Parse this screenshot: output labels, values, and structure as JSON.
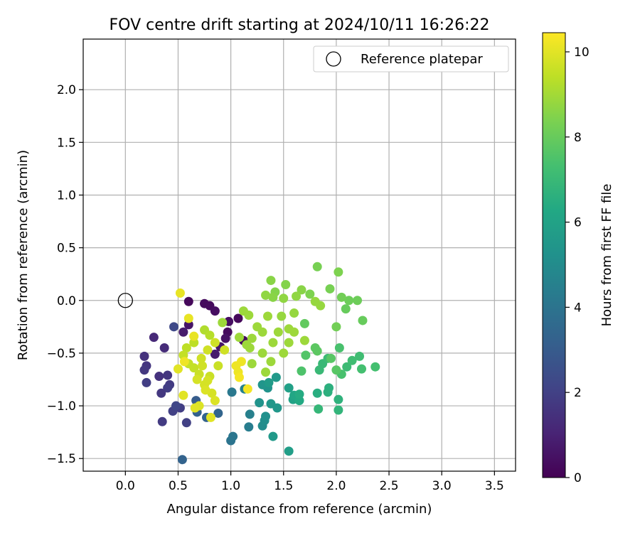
{
  "chart_data": {
    "type": "scatter",
    "title": "FOV centre drift starting at 2024/10/11 16:26:22",
    "xlabel": "Angular distance from reference (arcmin)",
    "ylabel": "Rotation from reference (arcmin)",
    "xlim": [
      -0.4,
      3.7
    ],
    "ylim": [
      -1.62,
      2.48
    ],
    "xticks": [
      0.0,
      0.5,
      1.0,
      1.5,
      2.0,
      2.5,
      3.0,
      3.5
    ],
    "xtick_labels": [
      "0.0",
      "0.5",
      "1.0",
      "1.5",
      "2.0",
      "2.5",
      "3.0",
      "3.5"
    ],
    "yticks": [
      -1.5,
      -1.0,
      -0.5,
      0.0,
      0.5,
      1.0,
      1.5,
      2.0
    ],
    "ytick_labels": [
      "−1.5",
      "−1.0",
      "−0.5",
      "0.0",
      "0.5",
      "1.0",
      "1.5",
      "2.0"
    ],
    "grid": true,
    "legend": {
      "position": "top-right",
      "entries": [
        "Reference platepar"
      ]
    },
    "reference_point": {
      "name": "Reference platepar",
      "x": 0.0,
      "y": 0.0
    },
    "colorbar": {
      "label": "Hours from first FF file",
      "colormap": "viridis",
      "range": [
        0,
        10.45
      ],
      "ticks": [
        0,
        2,
        4,
        6,
        8,
        10
      ],
      "tick_labels": [
        "0",
        "2",
        "4",
        "6",
        "8",
        "10"
      ]
    },
    "points": [
      [
        0.6,
        -0.01,
        0.2
      ],
      [
        0.75,
        -0.03,
        0.3
      ],
      [
        0.8,
        -0.05,
        0.3
      ],
      [
        0.85,
        -0.1,
        0.4
      ],
      [
        0.98,
        -0.2,
        0.4
      ],
      [
        0.97,
        -0.3,
        0.3
      ],
      [
        1.07,
        -0.17,
        0.2
      ],
      [
        1.12,
        -0.38,
        0.3
      ],
      [
        0.95,
        -0.36,
        0.5
      ],
      [
        0.9,
        -0.44,
        0.6
      ],
      [
        0.85,
        -0.51,
        0.8
      ],
      [
        0.6,
        -0.23,
        0.6
      ],
      [
        0.55,
        -0.3,
        0.8
      ],
      [
        0.27,
        -0.35,
        1.2
      ],
      [
        0.37,
        -0.45,
        1.3
      ],
      [
        0.18,
        -0.53,
        1.5
      ],
      [
        0.2,
        -0.62,
        1.6
      ],
      [
        0.18,
        -0.66,
        1.7
      ],
      [
        0.32,
        -0.72,
        1.5
      ],
      [
        0.4,
        -0.71,
        1.6
      ],
      [
        0.42,
        -0.8,
        1.8
      ],
      [
        0.4,
        -0.83,
        1.9
      ],
      [
        0.34,
        -0.88,
        1.7
      ],
      [
        0.2,
        -0.78,
        1.9
      ],
      [
        0.35,
        -1.15,
        1.8
      ],
      [
        0.45,
        -1.05,
        2.0
      ],
      [
        0.52,
        -1.02,
        1.9
      ],
      [
        0.58,
        -1.16,
        2.0
      ],
      [
        0.48,
        -1.0,
        2.2
      ],
      [
        0.46,
        -0.25,
        2.3
      ],
      [
        0.67,
        -0.95,
        3.0
      ],
      [
        0.68,
        -1.06,
        3.2
      ],
      [
        0.77,
        -1.11,
        3.3
      ],
      [
        0.88,
        -1.07,
        3.4
      ],
      [
        0.54,
        -1.51,
        3.3
      ],
      [
        1.0,
        -1.33,
        4.0
      ],
      [
        1.02,
        -1.29,
        4.1
      ],
      [
        1.01,
        -0.87,
        4.2
      ],
      [
        1.17,
        -1.2,
        4.4
      ],
      [
        1.18,
        -1.08,
        4.5
      ],
      [
        1.13,
        -0.84,
        4.6
      ],
      [
        1.3,
        -1.19,
        5.0
      ],
      [
        1.32,
        -1.14,
        5.1
      ],
      [
        1.33,
        -1.1,
        5.2
      ],
      [
        1.27,
        -0.97,
        5.3
      ],
      [
        1.35,
        -0.83,
        5.3
      ],
      [
        1.3,
        -0.8,
        5.4
      ],
      [
        1.38,
        -0.98,
        5.5
      ],
      [
        1.44,
        -1.02,
        5.5
      ],
      [
        1.43,
        -0.73,
        5.6
      ],
      [
        1.4,
        -1.29,
        5.6
      ],
      [
        1.36,
        -0.78,
        5.7
      ],
      [
        1.55,
        -1.43,
        5.8
      ],
      [
        1.55,
        -0.83,
        5.9
      ],
      [
        1.59,
        -0.94,
        6.0
      ],
      [
        1.6,
        -0.9,
        6.2
      ],
      [
        1.65,
        -0.95,
        6.3
      ],
      [
        1.65,
        -0.89,
        6.4
      ],
      [
        1.82,
        -0.88,
        6.5
      ],
      [
        1.92,
        -0.87,
        6.6
      ],
      [
        1.93,
        -0.83,
        6.6
      ],
      [
        2.02,
        -0.94,
        6.7
      ],
      [
        2.02,
        -1.04,
        6.8
      ],
      [
        1.83,
        -1.03,
        6.9
      ],
      [
        1.87,
        -0.6,
        7.0
      ],
      [
        1.84,
        -0.66,
        7.0
      ],
      [
        1.92,
        -0.55,
        7.1
      ],
      [
        2.1,
        -0.63,
        7.1
      ],
      [
        2.15,
        -0.57,
        7.2
      ],
      [
        2.22,
        -0.53,
        7.2
      ],
      [
        2.24,
        -0.65,
        7.3
      ],
      [
        2.37,
        -0.63,
        7.3
      ],
      [
        2.03,
        -0.45,
        7.4
      ],
      [
        2.05,
        -0.7,
        7.4
      ],
      [
        1.67,
        -0.67,
        7.5
      ],
      [
        1.71,
        -0.52,
        7.6
      ],
      [
        1.95,
        -0.55,
        7.7
      ],
      [
        2.0,
        -0.66,
        7.7
      ],
      [
        1.8,
        -0.45,
        7.8
      ],
      [
        1.82,
        -0.48,
        7.8
      ],
      [
        1.7,
        -0.22,
        7.9
      ],
      [
        2.25,
        -0.19,
        8.0
      ],
      [
        2.09,
        -0.08,
        8.0
      ],
      [
        2.12,
        0.0,
        8.1
      ],
      [
        2.2,
        0.0,
        8.1
      ],
      [
        2.05,
        0.03,
        8.2
      ],
      [
        2.0,
        -0.25,
        8.2
      ],
      [
        1.94,
        0.11,
        8.3
      ],
      [
        1.82,
        0.32,
        8.3
      ],
      [
        2.02,
        0.27,
        8.4
      ],
      [
        1.75,
        0.06,
        8.4
      ],
      [
        1.52,
        0.15,
        8.5
      ],
      [
        1.42,
        0.08,
        8.5
      ],
      [
        1.38,
        0.19,
        8.6
      ],
      [
        1.4,
        0.03,
        8.6
      ],
      [
        1.67,
        0.1,
        8.6
      ],
      [
        1.62,
        0.04,
        8.7
      ],
      [
        1.5,
        0.02,
        8.7
      ],
      [
        1.33,
        0.05,
        8.7
      ],
      [
        1.8,
        -0.01,
        8.8
      ],
      [
        1.85,
        -0.05,
        8.8
      ],
      [
        1.6,
        -0.12,
        8.8
      ],
      [
        1.48,
        -0.15,
        8.8
      ],
      [
        1.35,
        -0.15,
        8.9
      ],
      [
        1.45,
        -0.3,
        8.9
      ],
      [
        1.4,
        -0.4,
        8.9
      ],
      [
        1.3,
        -0.3,
        8.9
      ],
      [
        1.25,
        -0.25,
        8.9
      ],
      [
        1.2,
        -0.36,
        8.9
      ],
      [
        1.15,
        -0.42,
        8.9
      ],
      [
        1.3,
        -0.5,
        8.9
      ],
      [
        1.38,
        -0.58,
        8.9
      ],
      [
        1.33,
        -0.68,
        8.9
      ],
      [
        1.5,
        -0.5,
        8.9
      ],
      [
        1.55,
        -0.4,
        8.9
      ],
      [
        1.6,
        -0.3,
        8.9
      ],
      [
        1.7,
        -0.38,
        8.9
      ],
      [
        1.55,
        -0.27,
        8.9
      ],
      [
        1.2,
        -0.6,
        8.9
      ],
      [
        1.08,
        -0.35,
        8.9
      ],
      [
        1.12,
        -0.1,
        8.9
      ],
      [
        1.17,
        -0.14,
        8.9
      ],
      [
        1.18,
        -0.45,
        8.9
      ],
      [
        0.92,
        -0.21,
        8.9
      ],
      [
        0.75,
        -0.28,
        9.2
      ],
      [
        0.8,
        -0.33,
        9.3
      ],
      [
        0.65,
        -0.4,
        9.4
      ],
      [
        0.58,
        -0.45,
        9.4
      ],
      [
        0.55,
        -0.52,
        9.5
      ],
      [
        0.6,
        -0.6,
        9.5
      ],
      [
        0.65,
        -0.64,
        9.5
      ],
      [
        0.7,
        -0.7,
        9.6
      ],
      [
        0.8,
        -0.72,
        9.6
      ],
      [
        0.88,
        -0.62,
        9.6
      ],
      [
        0.94,
        -0.47,
        9.7
      ],
      [
        0.85,
        -0.4,
        9.7
      ],
      [
        0.78,
        -0.47,
        9.7
      ],
      [
        0.72,
        -0.55,
        9.7
      ],
      [
        0.73,
        -0.62,
        9.7
      ],
      [
        0.68,
        -0.75,
        9.8
      ],
      [
        0.75,
        -0.8,
        9.8
      ],
      [
        0.78,
        -0.76,
        9.8
      ],
      [
        0.82,
        -0.88,
        9.8
      ],
      [
        0.76,
        -0.85,
        9.9
      ],
      [
        0.85,
        -0.95,
        9.9
      ],
      [
        0.7,
        -1.0,
        9.9
      ],
      [
        0.66,
        -1.02,
        10.0
      ],
      [
        0.81,
        -1.11,
        10.0
      ],
      [
        0.55,
        -0.9,
        10.0
      ],
      [
        0.5,
        -0.65,
        10.0
      ],
      [
        0.52,
        0.07,
        10.1
      ],
      [
        0.6,
        -0.17,
        10.1
      ],
      [
        0.65,
        -0.34,
        10.1
      ],
      [
        0.56,
        -0.58,
        10.2
      ],
      [
        1.05,
        -0.62,
        10.2
      ],
      [
        1.1,
        -0.58,
        10.2
      ],
      [
        1.07,
        -0.68,
        10.2
      ],
      [
        1.16,
        -0.84,
        10.3
      ],
      [
        1.08,
        -0.73,
        10.3
      ]
    ]
  }
}
